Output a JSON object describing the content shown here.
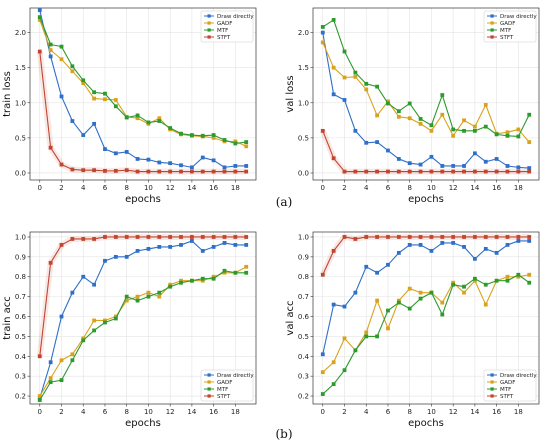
{
  "captions": [
    "(a)",
    "(b)"
  ],
  "chart_data": [
    {
      "type": "line",
      "xlabel": "epochs",
      "ylabel": "train loss",
      "xlim": [
        -0.9,
        19.9
      ],
      "ylim": [
        -0.1,
        2.35
      ],
      "x_ticks": [
        0,
        2,
        4,
        6,
        8,
        10,
        12,
        14,
        16,
        18
      ],
      "y_ticks": [
        0.0,
        0.5,
        1.0,
        1.5,
        2.0
      ],
      "y_tick_labels": [
        "0.0",
        "0.5",
        "1.0",
        "1.5",
        "2.0"
      ],
      "grid": true,
      "legend_position": "top-right",
      "series": [
        {
          "name": "Draw directly",
          "color": "#2e6fc9",
          "values": [
            2.32,
            1.66,
            1.09,
            0.74,
            0.54,
            0.7,
            0.34,
            0.28,
            0.3,
            0.2,
            0.19,
            0.15,
            0.14,
            0.11,
            0.08,
            0.22,
            0.18,
            0.08,
            0.1,
            0.1
          ]
        },
        {
          "name": "GADF",
          "color": "#d9a21b",
          "values": [
            2.18,
            1.75,
            1.62,
            1.45,
            1.28,
            1.06,
            1.05,
            1.04,
            0.8,
            0.78,
            0.7,
            0.78,
            0.62,
            0.55,
            0.53,
            0.52,
            0.5,
            0.45,
            0.45,
            0.38
          ]
        },
        {
          "name": "MTF",
          "color": "#2c9a2c",
          "values": [
            2.22,
            1.83,
            1.8,
            1.52,
            1.32,
            1.15,
            1.13,
            0.95,
            0.79,
            0.82,
            0.72,
            0.74,
            0.64,
            0.56,
            0.54,
            0.53,
            0.54,
            0.47,
            0.42,
            0.44
          ]
        },
        {
          "name": "STFT",
          "color": "#c2452f",
          "values": [
            1.73,
            0.36,
            0.12,
            0.05,
            0.04,
            0.04,
            0.03,
            0.03,
            0.04,
            0.02,
            0.02,
            0.02,
            0.02,
            0.02,
            0.02,
            0.02,
            0.02,
            0.02,
            0.02,
            0.02
          ]
        }
      ]
    },
    {
      "type": "line",
      "xlabel": "epochs",
      "ylabel": "val loss",
      "xlim": [
        -0.9,
        19.9
      ],
      "ylim": [
        -0.1,
        2.35
      ],
      "x_ticks": [
        0,
        2,
        4,
        6,
        8,
        10,
        12,
        14,
        16,
        18
      ],
      "y_ticks": [
        0.0,
        0.5,
        1.0,
        1.5,
        2.0
      ],
      "y_tick_labels": [
        "0.0",
        "0.5",
        "1.0",
        "1.5",
        "2.0"
      ],
      "grid": true,
      "legend_position": "top-right",
      "series": [
        {
          "name": "Draw directly",
          "color": "#2e6fc9",
          "values": [
            2.0,
            1.12,
            1.04,
            0.6,
            0.43,
            0.44,
            0.32,
            0.2,
            0.14,
            0.12,
            0.23,
            0.1,
            0.1,
            0.1,
            0.28,
            0.16,
            0.2,
            0.1,
            0.08,
            0.07
          ]
        },
        {
          "name": "GADF",
          "color": "#d9a21b",
          "values": [
            1.86,
            1.5,
            1.36,
            1.37,
            1.19,
            0.82,
            1.02,
            0.8,
            0.78,
            0.7,
            0.6,
            0.83,
            0.53,
            0.75,
            0.66,
            0.97,
            0.56,
            0.58,
            0.62,
            0.44
          ]
        },
        {
          "name": "MTF",
          "color": "#2c9a2c",
          "values": [
            2.08,
            2.18,
            1.73,
            1.43,
            1.27,
            1.23,
            0.99,
            0.88,
            0.99,
            0.77,
            0.68,
            1.11,
            0.62,
            0.6,
            0.6,
            0.66,
            0.55,
            0.53,
            0.52,
            0.83
          ]
        },
        {
          "name": "STFT",
          "color": "#c2452f",
          "values": [
            0.6,
            0.21,
            0.02,
            0.02,
            0.02,
            0.02,
            0.02,
            0.02,
            0.02,
            0.02,
            0.02,
            0.02,
            0.02,
            0.02,
            0.02,
            0.02,
            0.02,
            0.02,
            0.02,
            0.02
          ]
        }
      ]
    },
    {
      "type": "line",
      "xlabel": "epochs",
      "ylabel": "train acc",
      "xlim": [
        -0.9,
        19.9
      ],
      "ylim": [
        0.16,
        1.025
      ],
      "x_ticks": [
        0,
        2,
        4,
        6,
        8,
        10,
        12,
        14,
        16,
        18
      ],
      "y_ticks": [
        0.2,
        0.3,
        0.4,
        0.5,
        0.6,
        0.7,
        0.8,
        0.9,
        1.0
      ],
      "y_tick_labels": [
        "0.2",
        "0.3",
        "0.4",
        "0.5",
        "0.6",
        "0.7",
        "0.8",
        "0.9",
        "1.0"
      ],
      "grid": true,
      "legend_position": "bottom-right",
      "series": [
        {
          "name": "Draw directly",
          "color": "#2e6fc9",
          "values": [
            0.19,
            0.37,
            0.6,
            0.72,
            0.8,
            0.76,
            0.88,
            0.9,
            0.9,
            0.93,
            0.94,
            0.95,
            0.95,
            0.96,
            0.98,
            0.93,
            0.95,
            0.97,
            0.96,
            0.96
          ]
        },
        {
          "name": "GADF",
          "color": "#d9a21b",
          "values": [
            0.2,
            0.29,
            0.38,
            0.41,
            0.49,
            0.58,
            0.58,
            0.6,
            0.68,
            0.7,
            0.72,
            0.7,
            0.76,
            0.78,
            0.78,
            0.78,
            0.8,
            0.82,
            0.82,
            0.85
          ]
        },
        {
          "name": "MTF",
          "color": "#2c9a2c",
          "values": [
            0.18,
            0.27,
            0.28,
            0.38,
            0.48,
            0.53,
            0.57,
            0.59,
            0.7,
            0.68,
            0.7,
            0.72,
            0.75,
            0.77,
            0.78,
            0.79,
            0.79,
            0.83,
            0.82,
            0.82
          ]
        },
        {
          "name": "STFT",
          "color": "#c2452f",
          "values": [
            0.4,
            0.87,
            0.96,
            0.99,
            0.99,
            0.99,
            1.0,
            1.0,
            1.0,
            1.0,
            1.0,
            1.0,
            1.0,
            1.0,
            1.0,
            1.0,
            1.0,
            1.0,
            1.0,
            1.0
          ]
        }
      ]
    },
    {
      "type": "line",
      "xlabel": "epochs",
      "ylabel": "val acc",
      "xlim": [
        -0.9,
        19.9
      ],
      "ylim": [
        0.16,
        1.025
      ],
      "x_ticks": [
        0,
        2,
        4,
        6,
        8,
        10,
        12,
        14,
        16,
        18
      ],
      "y_ticks": [
        0.2,
        0.3,
        0.4,
        0.5,
        0.6,
        0.7,
        0.8,
        0.9,
        1.0
      ],
      "y_tick_labels": [
        "0.2",
        "0.3",
        "0.4",
        "0.5",
        "0.6",
        "0.7",
        "0.8",
        "0.9",
        "1.0"
      ],
      "grid": true,
      "legend_position": "bottom-right",
      "series": [
        {
          "name": "Draw directly",
          "color": "#2e6fc9",
          "values": [
            0.41,
            0.66,
            0.65,
            0.72,
            0.85,
            0.82,
            0.86,
            0.92,
            0.96,
            0.96,
            0.93,
            0.97,
            0.97,
            0.95,
            0.89,
            0.94,
            0.92,
            0.96,
            0.98,
            0.98
          ]
        },
        {
          "name": "GADF",
          "color": "#d9a21b",
          "values": [
            0.32,
            0.37,
            0.49,
            0.43,
            0.52,
            0.68,
            0.54,
            0.68,
            0.74,
            0.72,
            0.72,
            0.67,
            0.77,
            0.72,
            0.78,
            0.66,
            0.78,
            0.8,
            0.8,
            0.81
          ]
        },
        {
          "name": "MTF",
          "color": "#2c9a2c",
          "values": [
            0.21,
            0.26,
            0.33,
            0.43,
            0.5,
            0.5,
            0.63,
            0.67,
            0.64,
            0.69,
            0.72,
            0.61,
            0.76,
            0.75,
            0.79,
            0.76,
            0.78,
            0.78,
            0.81,
            0.77
          ]
        },
        {
          "name": "STFT",
          "color": "#c2452f",
          "values": [
            0.81,
            0.93,
            1.0,
            0.99,
            1.0,
            1.0,
            1.0,
            1.0,
            1.0,
            1.0,
            1.0,
            1.0,
            1.0,
            1.0,
            1.0,
            1.0,
            1.0,
            1.0,
            1.0,
            1.0
          ]
        }
      ]
    }
  ]
}
